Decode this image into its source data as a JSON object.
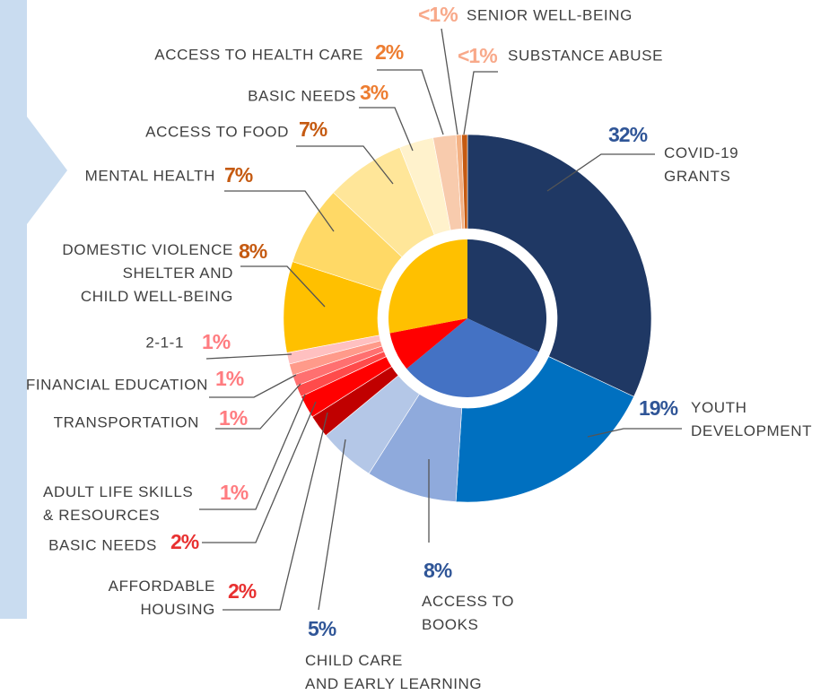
{
  "chart_data": {
    "type": "sunburst",
    "categories": [
      "COVID-19\nGRANTS",
      "YOUTH\nDEVELOPMENT",
      "ACCESS TO\nBOOKS",
      "CHILD CARE\nAND EARLY LEARNING",
      "AFFORDABLE\nHOUSING",
      "BASIC NEEDS",
      "ADULT LIFE SKILLS\n& RESOURCES",
      "TRANSPORTATION",
      "FINANCIAL EDUCATION",
      "2-1-1",
      "DOMESTIC VIOLENCE\nSHELTER AND\nCHILD WELL-BEING",
      "MENTAL HEALTH",
      "ACCESS TO FOOD",
      "BASIC NEEDS",
      "ACCESS TO HEALTH CARE",
      "SENIOR WELL-BEING",
      "SUBSTANCE ABUSE"
    ],
    "values": [
      32,
      19,
      8,
      5,
      2,
      2,
      1,
      1,
      1,
      1,
      8,
      7,
      7,
      3,
      2,
      0.5,
      0.5
    ],
    "value_labels": [
      "32%",
      "19%",
      "8%",
      "5%",
      "2%",
      "2%",
      "1%",
      "1%",
      "1%",
      "1%",
      "8%",
      "7%",
      "7%",
      "3%",
      "2%",
      "<1%",
      "<1%"
    ],
    "colors": [
      "#1f3864",
      "#0070c0",
      "#8faadc",
      "#b4c7e7",
      "#c00000",
      "#ff0000",
      "#ff4b4b",
      "#ff7070",
      "#ff9a8a",
      "#ffc0c0",
      "#ffc000",
      "#ffd966",
      "#ffe699",
      "#fff2cc",
      "#f8cbad",
      "#f4b183",
      "#c55a11"
    ],
    "label_colors": [
      "#2f5597",
      "#2f5597",
      "#2f5597",
      "#2f5597",
      "#e83030",
      "#e83030",
      "#ff7c80",
      "#ff7c80",
      "#ff7c80",
      "#ff7c80",
      "#c55a11",
      "#c55a11",
      "#c55a11",
      "#ed7d31",
      "#ed7d31",
      "#f8a98a",
      "#f8a98a"
    ],
    "groups": [
      0,
      1,
      1,
      1,
      2,
      2,
      2,
      2,
      2,
      2,
      3,
      3,
      3,
      3,
      3,
      3,
      3
    ],
    "group_colors": [
      "#1f3864",
      "#4472c4",
      "#ff0000",
      "#ffc000"
    ]
  }
}
